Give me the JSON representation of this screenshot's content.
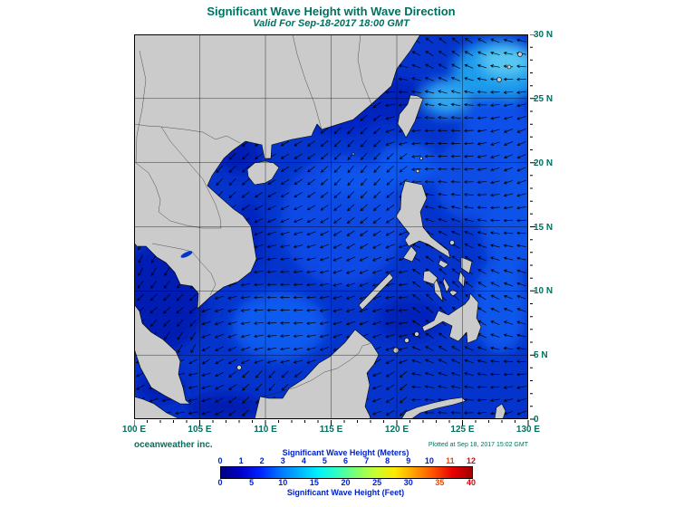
{
  "header": {
    "title": "Significant Wave Height with Wave Direction",
    "subtitle": "Valid For Sep-18-2017 18:00 GMT"
  },
  "axes": {
    "x_ticks": [
      "100 E",
      "105 E",
      "110 E",
      "115 E",
      "120 E",
      "125 E",
      "130 E"
    ],
    "y_ticks": [
      "30 N",
      "25 N",
      "20 N",
      "15 N",
      "10 N",
      "5 N",
      "0"
    ]
  },
  "legend": {
    "meters_label": "Significant Wave Height (Meters)",
    "feet_label": "Significant Wave Height (Feet)",
    "meters_ticks": [
      "0",
      "1",
      "2",
      "3",
      "4",
      "5",
      "6",
      "7",
      "8",
      "9",
      "10",
      "11",
      "12"
    ],
    "meters_tick_colors": [
      "#0022CC",
      "#0022CC",
      "#0022CC",
      "#0022CC",
      "#0022CC",
      "#0022CC",
      "#0022CC",
      "#0022CC",
      "#0022CC",
      "#0022CC",
      "#0022CC",
      "#EE4400",
      "#DD0000"
    ],
    "feet_ticks": [
      "0",
      "5",
      "10",
      "15",
      "20",
      "25",
      "30",
      "35",
      "40"
    ],
    "feet_tick_colors": [
      "#0022CC",
      "#0022CC",
      "#0022CC",
      "#0022CC",
      "#0022CC",
      "#0022CC",
      "#0022CC",
      "#EE4400",
      "#DD0000"
    ],
    "gradient": [
      "#000080",
      "#0000C8",
      "#0020FF",
      "#0070FF",
      "#00B0FF",
      "#00F0FF",
      "#30FFC0",
      "#80FF70",
      "#C8FF30",
      "#FFE800",
      "#FFA000",
      "#FF5000",
      "#E80000",
      "#A00000"
    ]
  },
  "footer": {
    "credit": "oceanweather inc.",
    "plotted_at": "Plotted at Sep 18, 2017 15:02 GMT"
  },
  "colors": {
    "heading_text": "#007060",
    "legend_text": "#0022CC",
    "land": "#CBCBCB",
    "ocean": "#0434CC"
  },
  "chart_data": {
    "type": "heatmap",
    "title": "Significant Wave Height with Wave Direction",
    "x_axis_longitude_deg_east": [
      100,
      130
    ],
    "y_axis_latitude_deg_north": [
      0,
      30
    ],
    "grid_interval_deg": 5,
    "colorbar_meters_ticks": [
      0,
      1,
      2,
      3,
      4,
      5,
      6,
      7,
      8,
      9,
      10,
      11,
      12
    ],
    "colorbar_feet_ticks": [
      0,
      5,
      10,
      15,
      20,
      25,
      30,
      35,
      40
    ]
  }
}
